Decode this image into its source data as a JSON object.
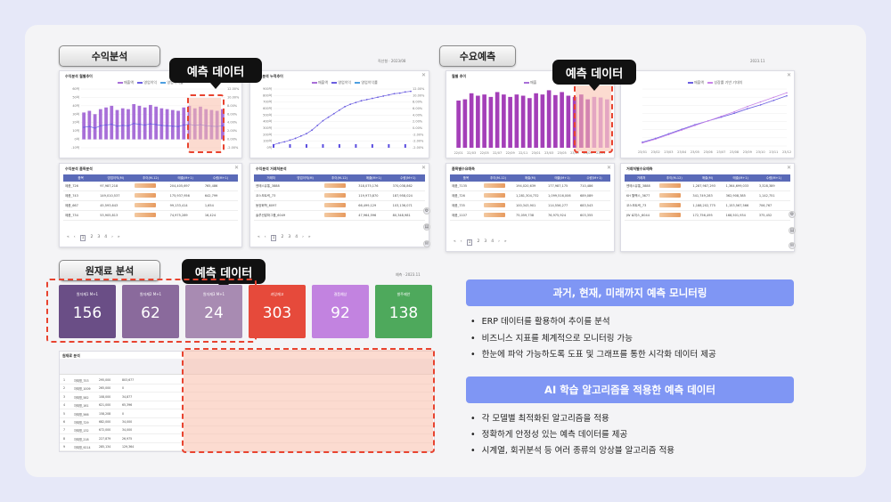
{
  "sections": {
    "revenue": "수익분석",
    "demand": "수요예측",
    "material": "원재료 분석"
  },
  "callouts": {
    "revenue": "예측 데이터",
    "demand": "예측 데이터",
    "material": "예측 데이터"
  },
  "revenue_panels": {
    "monthly_title": "수익분석 월별추이",
    "cumulative_title": "수익분석 누적추이",
    "legend": [
      "매출액",
      "영업이익",
      "영업이익률"
    ],
    "table1_title": "수익분석 품목분석",
    "table1_headers": [
      "품목",
      "영업이익(M)",
      "추이(M-12)",
      "매출(M+1)",
      "수량(M+1)"
    ],
    "table1_rows": [
      [
        "제품_726",
        "97,987,218",
        "204,405,697",
        "765,486"
      ],
      [
        "제품_743",
        "149,010,537",
        "175,937,956",
        "642,799"
      ],
      [
        "제품_667",
        "45,593,643",
        "99,133,414",
        "1,654"
      ],
      [
        "제품_734",
        "53,905,813",
        "74,975,289",
        "16,424"
      ]
    ],
    "table2_title": "수익분석 거래처분석",
    "table2_headers": [
      "거래처",
      "영업이익(M)",
      "추이(M-12)",
      "매출(M+1)",
      "수량(M+1)"
    ],
    "table2_rows": [
      [
        "엔에스유통_3888",
        "",
        "318,075,176",
        "370,038,862"
      ],
      [
        "코스모트릭_73",
        "",
        "119,973,870",
        "187,958,024"
      ],
      [
        "동양화학_6097",
        "",
        "66,499,129",
        "103,136,071"
      ],
      [
        "솔루션알파그룹_6049",
        "",
        "47,964,596",
        "80,348,981"
      ]
    ],
    "pages": [
      "«",
      "‹",
      "1",
      "2",
      "3",
      "4",
      "›",
      "»"
    ],
    "filter": "직선형 · 2023/08"
  },
  "demand_panels": {
    "monthly_title": "월별 추이",
    "trend_title": "추이",
    "legend_monthly": [
      "매출"
    ],
    "legend_trend": [
      "매출액",
      "성장률 기반 기대치"
    ],
    "table1_title": "품목별수요예측",
    "table1_headers": [
      "품목",
      "추이(M-12)",
      "매출(M)",
      "매출(M+1)",
      "수량(M+1)"
    ],
    "table1_rows": [
      [
        "제품_7135",
        "",
        "194,020,639",
        "177,987,175",
        "710,486"
      ],
      [
        "제품_726",
        "",
        "1,281,304,732",
        "1,099,516,006",
        "689,089"
      ],
      [
        "제품_735",
        "",
        "100,343,901",
        "114,556,277",
        "683,543"
      ],
      [
        "제품_1107",
        "",
        "75,059,738",
        "76,975,924",
        "603,355"
      ]
    ],
    "table2_title": "거래처별수요예측",
    "table2_headers": [
      "거래처",
      "추이(M-12)",
      "매출(M)",
      "매출(M+1)",
      "수량(M+1)"
    ],
    "table2_rows": [
      [
        "엔에스유통_3888",
        "",
        "1,287,987,293",
        "1,364,699,033",
        "3,328,389"
      ],
      [
        "KH 월팩스_3677",
        "",
        "341,749,283",
        "362,908,385",
        "1,142,751"
      ],
      [
        "코스모트릭_73",
        "",
        "1,188,202,775",
        "1,153,567,566",
        "706,767"
      ],
      [
        "JW 로지스_6044",
        "",
        "172,756,495",
        "168,501,934",
        "375,452"
      ]
    ],
    "filter": "2023.11",
    "monthly_x": [
      "22/01",
      "22/03",
      "22/05",
      "22/07",
      "22/09",
      "22/11",
      "23/01",
      "23/03",
      "23/05",
      "23/07",
      "23/09",
      "23/11"
    ],
    "trend_x": [
      "23/01",
      "23/02",
      "23/03",
      "23/04",
      "23/05",
      "23/06",
      "23/07",
      "23/08",
      "23/09",
      "23/10",
      "23/11",
      "23/12"
    ],
    "monthly_values": [
      78,
      80,
      90,
      86,
      88,
      84,
      92,
      88,
      84,
      88,
      86,
      82,
      90,
      88,
      95,
      87,
      92,
      86,
      84,
      88,
      80,
      84,
      83,
      80
    ],
    "trend_values_a": [
      5,
      10,
      16,
      22,
      28,
      33,
      38,
      43,
      49,
      54,
      60,
      66
    ],
    "trend_values_b": [
      4,
      9,
      15,
      21,
      27,
      33,
      39,
      45,
      52,
      58,
      64,
      70
    ]
  },
  "revenue_charts": {
    "monthly_y_left": [
      "60억",
      "50억",
      "40억",
      "30억",
      "20억",
      "10억",
      "0억",
      "-10억"
    ],
    "monthly_y_right": [
      "12.00%",
      "10.00%",
      "8.00%",
      "6.00%",
      "4.00%",
      "2.00%",
      "0.00%",
      "-2.00%"
    ],
    "monthly_bar_values": [
      32,
      34,
      30,
      36,
      38,
      40,
      35,
      37,
      36,
      42,
      40,
      38,
      41,
      39,
      37,
      36,
      35,
      34,
      38,
      40,
      37,
      39,
      36,
      35,
      34,
      36
    ],
    "cumulative_y_left": [
      "900억",
      "800억",
      "700억",
      "600억",
      "500억",
      "400억",
      "300억",
      "200억",
      "100억",
      "0억"
    ],
    "cumulative_values": [
      5,
      8,
      10,
      13,
      16,
      20,
      24,
      30,
      38,
      46,
      52,
      58,
      64,
      70,
      74,
      77,
      80,
      82,
      84,
      86,
      88,
      90,
      92,
      93,
      95,
      96
    ],
    "forecast_label": "M+1"
  },
  "material": {
    "filter": "예측 · 2023.11",
    "kpis": [
      {
        "label": "원자재1 M+1",
        "value": "156",
        "color": "#6a4e86"
      },
      {
        "label": "원자재2 M+1",
        "value": "62",
        "color": "#8a6a9c"
      },
      {
        "label": "원자재3 M+1",
        "value": "24",
        "color": "#a88bb2"
      },
      {
        "label": "과잉재고",
        "value": "303",
        "color": "#e64a3b"
      },
      {
        "label": "결품예상",
        "value": "92",
        "color": "#c283e0"
      },
      {
        "label": "발주제안",
        "value": "138",
        "color": "#4ea95c"
      }
    ],
    "table_title": "원재료 분석",
    "table_rows": [
      [
        "1",
        "자재명_753",
        "295,000",
        "803,677"
      ],
      [
        "2",
        "자재명_1009",
        "265,000",
        "0"
      ],
      [
        "3",
        "자재명_582",
        "108,000",
        "34,877"
      ],
      [
        "4",
        "자재명_161",
        "621,000",
        "65,396"
      ],
      [
        "5",
        "자재명_566",
        "158,208",
        "0"
      ],
      [
        "6",
        "자재명_729",
        "682,000",
        "34,000"
      ],
      [
        "7",
        "자재명_132",
        "672,000",
        "34,000"
      ],
      [
        "8",
        "자재명_218",
        "227,879",
        "26,975"
      ],
      [
        "9",
        "자재명_9214",
        "285,134",
        "129,364"
      ]
    ]
  },
  "features": {
    "monitoring_title": "과거, 현재, 미래까지 예측 모니터링",
    "monitoring_items": [
      "ERP 데이터를 활용하여 추이를 분석",
      "비즈니스 지표를 체계적으로 모니터링 가능",
      "한눈에 파악 가능하도록 도표 및 그래프를 통한 시각화 데이터 제공"
    ],
    "ai_title": "AI 학습 알고리즘을 적용한 예측 데이터",
    "ai_items": [
      "각 모델별 최적화된 알고리즘을 적용",
      "정확하게 안정성 있는 예측 데이터를 제공",
      "시계열, 회귀분석 등 여러 종류의 앙상블 알고리즘 적용"
    ]
  },
  "colors": {
    "accent": "#7f96f4",
    "bar_purple": "#a86fd8",
    "line_purple": "#6b5ee0",
    "dash_red": "#e8432f"
  }
}
